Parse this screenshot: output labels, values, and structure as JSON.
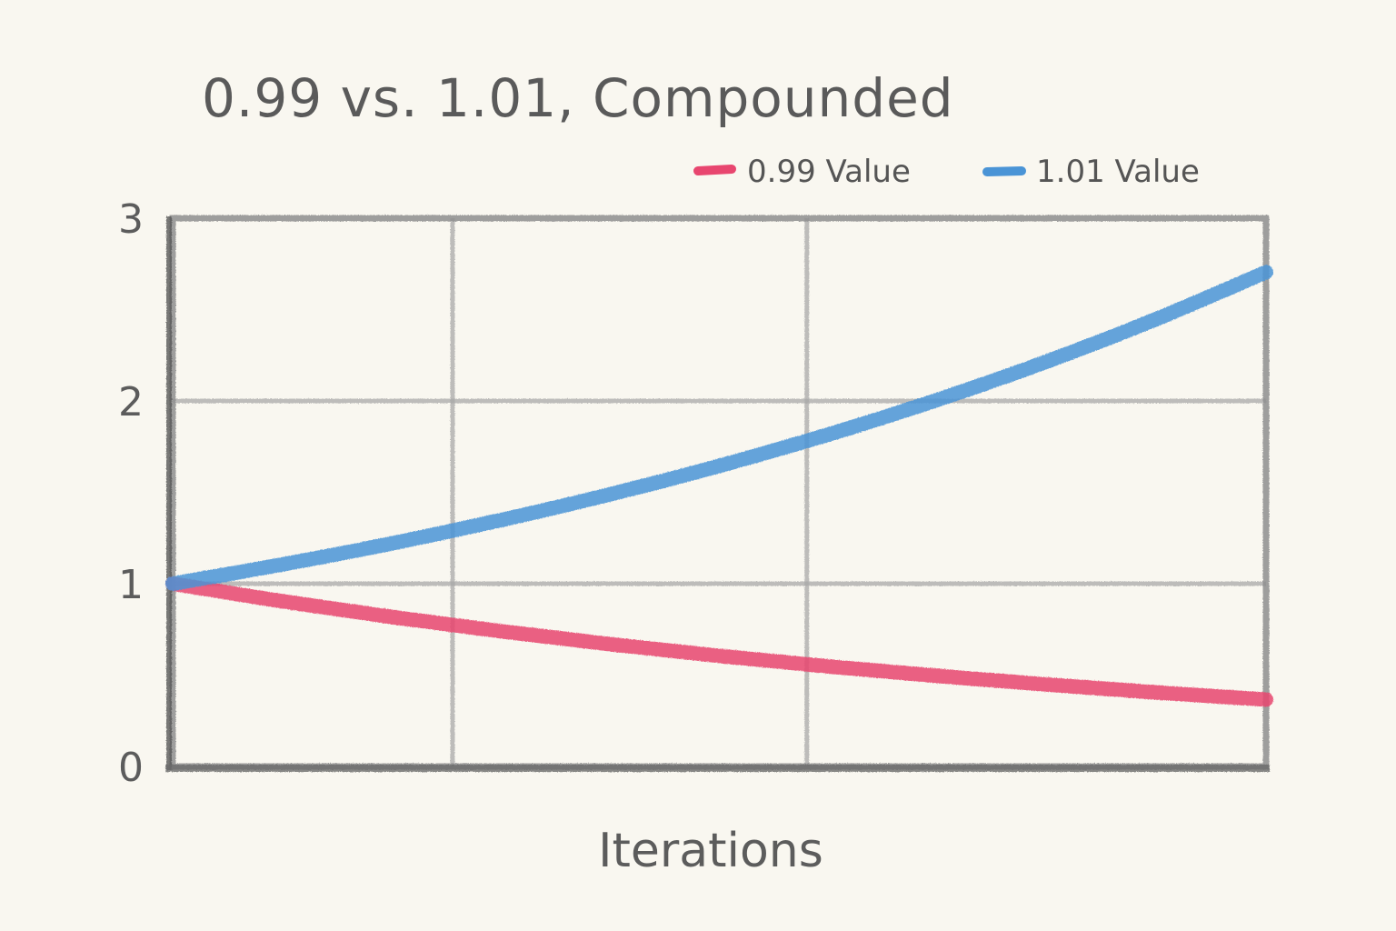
{
  "chart_data": {
    "type": "line",
    "title": "0.99 vs. 1.01, Compounded",
    "xlabel": "Iterations",
    "ylabel": "",
    "ylim": [
      0,
      3
    ],
    "xlim": [
      0,
      100
    ],
    "y_ticks": [
      "0",
      "1",
      "2",
      "3"
    ],
    "y_tick_values": [
      0,
      1,
      2,
      3
    ],
    "x_grid_values": [
      0,
      25.6,
      58,
      100
    ],
    "grid": true,
    "legend_position": "top-right",
    "x": [
      0,
      10,
      20,
      30,
      40,
      50,
      60,
      70,
      80,
      90,
      100
    ],
    "series": [
      {
        "name": "0.99 Value",
        "color": "#e8466f",
        "values": [
          1.0,
          0.904,
          0.818,
          0.74,
          0.669,
          0.605,
          0.547,
          0.495,
          0.448,
          0.405,
          0.366
        ]
      },
      {
        "name": "1.01 Value",
        "color": "#4a94d6",
        "values": [
          1.0,
          1.105,
          1.22,
          1.348,
          1.489,
          1.645,
          1.817,
          2.007,
          2.217,
          2.449,
          2.705
        ]
      }
    ]
  }
}
